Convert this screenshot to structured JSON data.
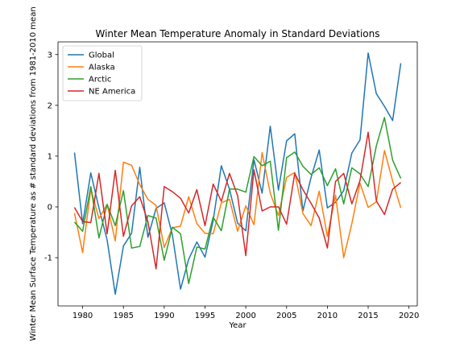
{
  "chart_data": {
    "type": "line",
    "title": "Winter Mean Temperature Anomaly in Standard Deviations",
    "xlabel": "Year",
    "ylabel": "Winter Mean Surface Temperature as # standard deviations from 1981-2010 mean",
    "xlim": [
      1976.98,
      2021.02
    ],
    "ylim": [
      -1.95,
      3.25
    ],
    "xticks": [
      1980,
      1985,
      1990,
      1995,
      2000,
      2005,
      2010,
      2015,
      2020
    ],
    "yticks": [
      -1,
      0,
      1,
      2,
      3
    ],
    "grid": false,
    "legend_position": "top-left",
    "x": [
      1979,
      1980,
      1981,
      1982,
      1983,
      1984,
      1985,
      1986,
      1987,
      1988,
      1989,
      1990,
      1991,
      1992,
      1993,
      1994,
      1995,
      1996,
      1997,
      1998,
      1999,
      2000,
      2001,
      2002,
      2003,
      2004,
      2005,
      2006,
      2007,
      2008,
      2009,
      2010,
      2011,
      2012,
      2013,
      2014,
      2015,
      2016,
      2017,
      2018,
      2019
    ],
    "series": [
      {
        "name": "Global",
        "color": "#1f77b4",
        "values": [
          1.07,
          -0.33,
          0.67,
          -0.02,
          -0.65,
          -1.72,
          -0.77,
          -0.52,
          0.78,
          -0.6,
          -0.03,
          0.08,
          -0.55,
          -1.62,
          -1.03,
          -0.69,
          -0.99,
          -0.27,
          0.81,
          0.35,
          -0.32,
          -0.47,
          0.93,
          0.27,
          1.59,
          0.33,
          1.3,
          1.44,
          -0.08,
          0.58,
          1.12,
          -0.02,
          0.09,
          0.32,
          1.06,
          1.32,
          3.03,
          2.23,
          1.98,
          1.7,
          2.83
        ]
      },
      {
        "name": "Alaska",
        "color": "#ff7f0e",
        "values": [
          -0.12,
          -0.9,
          0.35,
          -0.23,
          0.05,
          -0.67,
          0.88,
          0.82,
          0.44,
          0.15,
          0.03,
          -0.8,
          -0.41,
          -0.38,
          0.2,
          -0.33,
          -0.52,
          -0.53,
          0.08,
          0.15,
          -0.48,
          0.02,
          -0.35,
          1.07,
          0.27,
          -0.17,
          0.58,
          0.68,
          -0.13,
          -0.37,
          0.31,
          -0.58,
          0.23,
          -1.0,
          -0.33,
          0.47,
          -0.01,
          0.1,
          1.11,
          0.51,
          -0.02
        ]
      },
      {
        "name": "Arctic",
        "color": "#2ca02c",
        "values": [
          -0.3,
          -0.48,
          0.4,
          -0.61,
          0.05,
          -0.37,
          0.32,
          -0.81,
          -0.78,
          -0.17,
          -0.22,
          -1.05,
          -0.4,
          -0.53,
          -1.51,
          -0.79,
          -0.83,
          -0.2,
          -0.47,
          0.35,
          0.35,
          0.29,
          0.99,
          0.81,
          0.9,
          -0.46,
          0.97,
          1.08,
          0.8,
          0.64,
          0.77,
          0.42,
          0.75,
          0.06,
          0.77,
          0.65,
          0.4,
          1.2,
          1.76,
          0.92,
          0.56
        ]
      },
      {
        "name": "NE America",
        "color": "#d62728",
        "values": [
          -0.01,
          -0.29,
          -0.31,
          0.66,
          -0.53,
          0.72,
          -0.58,
          0.02,
          0.2,
          -0.29,
          -1.22,
          0.4,
          0.3,
          0.17,
          -0.12,
          0.34,
          -0.37,
          0.45,
          0.11,
          0.66,
          0.22,
          -0.96,
          0.73,
          -0.08,
          0.0,
          0.0,
          -0.34,
          0.66,
          0.34,
          0.07,
          -0.22,
          -0.81,
          0.5,
          0.66,
          0.06,
          0.52,
          1.47,
          0.12,
          -0.15,
          0.35,
          0.48
        ]
      }
    ]
  }
}
